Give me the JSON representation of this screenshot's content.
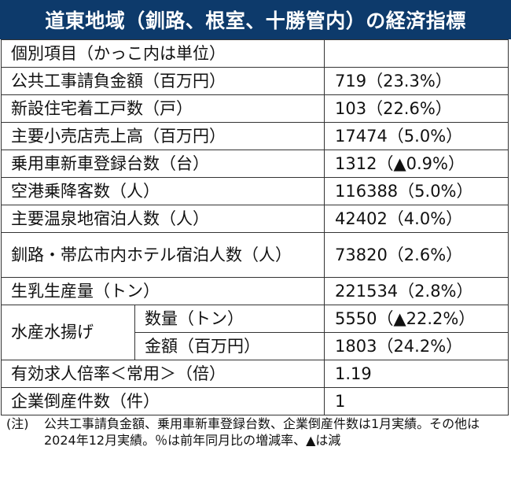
{
  "title": "道東地域（釧路、根室、十勝管内）の経済指標",
  "table": {
    "header": "個別項目（かっこ内は単位）",
    "rows": [
      {
        "label": "公共工事請負金額（百万円）",
        "value": "719（23.3%）"
      },
      {
        "label": "新設住宅着工戸数（戸）",
        "value": "103（22.6%）"
      },
      {
        "label": "主要小売店売上高（百万円）",
        "value": "17474（5.0%）"
      },
      {
        "label": "乗用車新車登録台数（台）",
        "value": "1312（▲0.9%）"
      },
      {
        "label": "空港乗降客数（人）",
        "value": "116388（5.0%）"
      },
      {
        "label": "主要温泉地宿泊人数（人）",
        "value": "42402（4.0%）"
      },
      {
        "label": "釧路・帯広市内ホテル宿泊人数（人）",
        "value": "73820（2.6%）"
      },
      {
        "label": "生乳生産量（トン）",
        "value": "221534（2.8%）"
      }
    ],
    "group": {
      "label": "水産水揚げ",
      "sub": [
        {
          "label": "数量（トン）",
          "value": "5550（▲22.2%）"
        },
        {
          "label": "金額（百万円）",
          "value": "1803（24.2%）"
        }
      ]
    },
    "rows_after": [
      {
        "label": "有効求人倍率＜常用＞（倍）",
        "value": "1.19"
      },
      {
        "label": "企業倒産件数（件）",
        "value": "1"
      }
    ]
  },
  "note": {
    "mark": "(注)",
    "text": "公共工事請負金額、乗用車新車登録台数、企業倒産件数は1月実績。その他は2024年12月実績。％は前年同月比の増減率、▲は減"
  },
  "colors": {
    "header_bg": "#0d3a6b",
    "header_text": "#ffffff",
    "border": "#333333"
  }
}
